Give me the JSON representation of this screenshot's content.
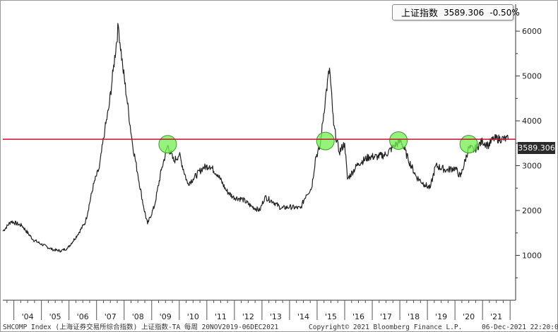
{
  "legend": {
    "series_name": "上证指数",
    "last_value": "3589.306",
    "change": "-0.50%"
  },
  "price_tag": "3589.306",
  "footer": {
    "left": "SHCOMP Index (上海证券交易所综合指数) 上证指数-TA  每周 20NOV2019-06DEC2021",
    "center": "Copyright© 2021 Bloomberg Finance L.P.",
    "right": "06-Dec-2021 22:20:07"
  },
  "colors": {
    "series": "#222222",
    "reference_line": "#e8002d",
    "markers": "#77ee55"
  },
  "chart_data": {
    "type": "line",
    "title": "",
    "xlabel": "",
    "ylabel": "",
    "x_ticks": [
      "'04",
      "'05",
      "'06",
      "'07",
      "'08",
      "'09",
      "'10",
      "'11",
      "'12",
      "'13",
      "'14",
      "'15",
      "'16",
      "'17",
      "'18",
      "'19",
      "'20",
      "'21"
    ],
    "y_ticks": [
      1000,
      2000,
      3000,
      4000,
      5000,
      6000
    ],
    "ylim": [
      0,
      6600
    ],
    "xlim": [
      2003.6,
      2022.2
    ],
    "series": [
      {
        "name": "上证指数",
        "x": [
          2003.6,
          2003.9,
          2004.3,
          2004.7,
          2005.0,
          2005.4,
          2005.7,
          2005.95,
          2006.3,
          2006.6,
          2006.9,
          2007.1,
          2007.3,
          2007.45,
          2007.6,
          2007.79,
          2007.95,
          2008.1,
          2008.3,
          2008.5,
          2008.7,
          2008.85,
          2009.1,
          2009.35,
          2009.58,
          2009.8,
          2010.0,
          2010.3,
          2010.5,
          2010.85,
          2011.1,
          2011.4,
          2011.7,
          2011.95,
          2012.3,
          2012.6,
          2012.92,
          2013.1,
          2013.4,
          2013.7,
          2014.0,
          2014.4,
          2014.6,
          2014.8,
          2014.95,
          2015.1,
          2015.3,
          2015.45,
          2015.6,
          2015.8,
          2016.0,
          2016.1,
          2016.5,
          2016.9,
          2017.2,
          2017.5,
          2017.8,
          2018.05,
          2018.3,
          2018.6,
          2018.9,
          2019.1,
          2019.3,
          2019.7,
          2020.0,
          2020.2,
          2020.5,
          2020.7,
          2021.0,
          2021.2,
          2021.4,
          2021.7,
          2021.93
        ],
        "values": [
          1540,
          1760,
          1660,
          1350,
          1250,
          1130,
          1100,
          1160,
          1450,
          1750,
          2600,
          2950,
          3800,
          4300,
          5100,
          6124,
          5200,
          4500,
          3500,
          2800,
          2100,
          1700,
          2100,
          2900,
          3450,
          3100,
          3250,
          2600,
          2700,
          2950,
          3000,
          2800,
          2450,
          2300,
          2250,
          2100,
          2000,
          2300,
          2200,
          2050,
          2080,
          2050,
          2350,
          2500,
          3200,
          3400,
          4500,
          5178,
          3900,
          3300,
          3500,
          2700,
          3050,
          3200,
          3200,
          3250,
          3450,
          3550,
          3150,
          2750,
          2580,
          2500,
          3000,
          2900,
          2950,
          2750,
          3400,
          3350,
          3550,
          3450,
          3600,
          3600,
          3589
        ]
      }
    ],
    "reference_lines": [
      {
        "axis": "y",
        "value": 3589.306
      }
    ],
    "highlight_markers": [
      {
        "x": 2009.58,
        "y": 3478
      },
      {
        "x": 2015.3,
        "y": 3550
      },
      {
        "x": 2017.95,
        "y": 3560
      },
      {
        "x": 2020.5,
        "y": 3480
      }
    ],
    "grid": false,
    "legend_position": "top-right",
    "y_axis_side": "right"
  }
}
